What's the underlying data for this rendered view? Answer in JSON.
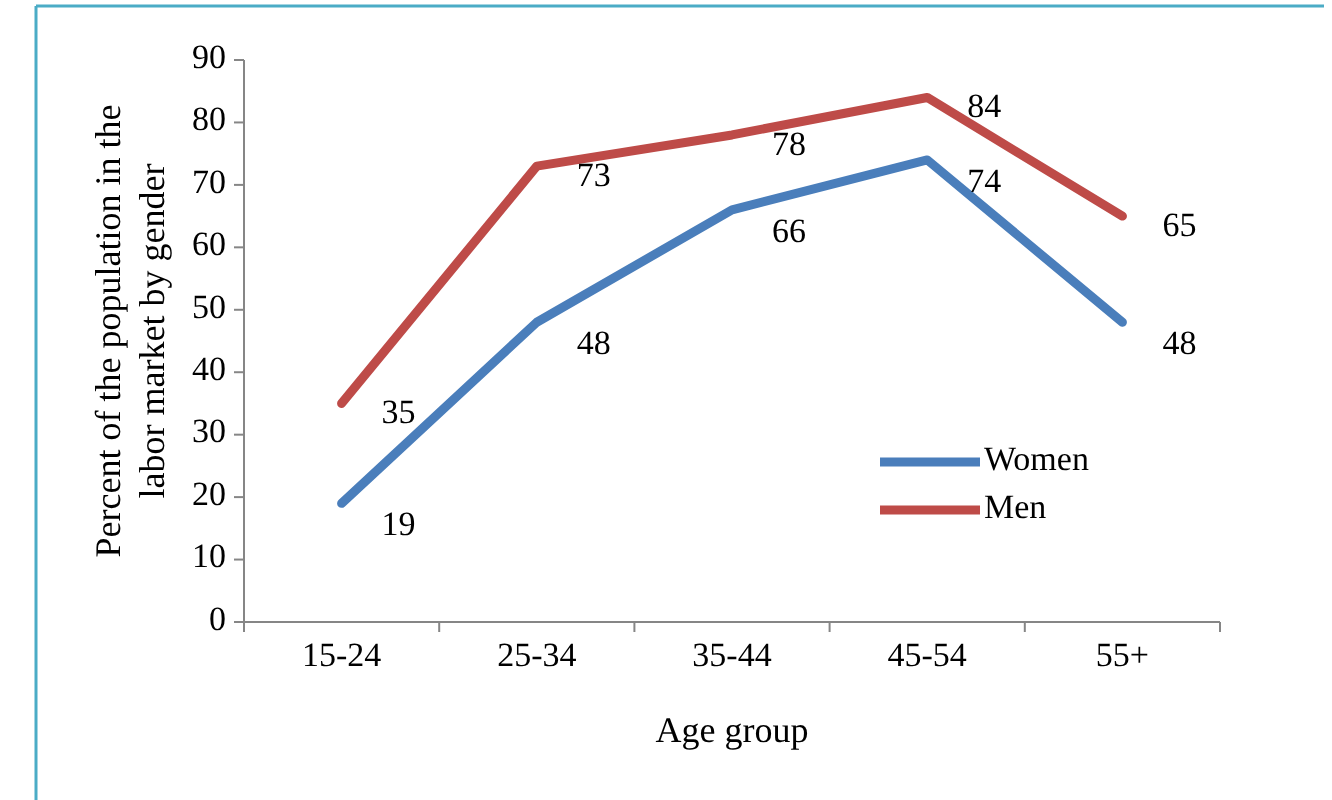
{
  "chart_data": {
    "type": "line",
    "xlabel": "Age group",
    "ylabel": "Percent of the population in the labor market by gender",
    "categories": [
      "15-24",
      "25-34",
      "35-44",
      "45-54",
      "55+"
    ],
    "series": [
      {
        "name": "Women",
        "color": "#4a7ebb",
        "values": [
          19,
          48,
          66,
          74,
          48
        ]
      },
      {
        "name": "Men",
        "color": "#be4b48",
        "values": [
          35,
          73,
          78,
          84,
          65
        ]
      }
    ],
    "ylim": [
      0,
      90
    ],
    "yticks": [
      0,
      10,
      20,
      30,
      40,
      50,
      60,
      70,
      80,
      90
    ],
    "grid": false,
    "legend": "bottom right",
    "data_labels": true,
    "marker": "none",
    "line_style": "solid"
  }
}
